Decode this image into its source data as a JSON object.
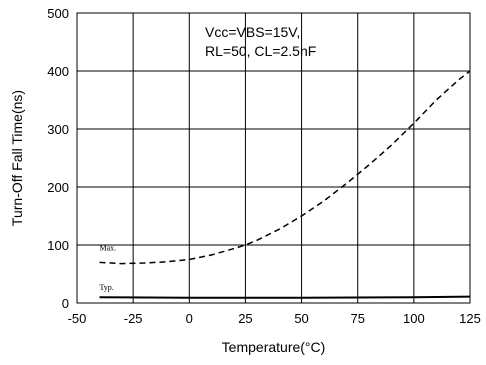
{
  "chart_data": {
    "type": "line",
    "title": "",
    "xlabel": "Temperature(°C)",
    "ylabel": "Turn-Off Fall Time(ns)",
    "xlim": [
      -50,
      125
    ],
    "ylim": [
      0,
      500
    ],
    "xticks": [
      -50,
      -25,
      0,
      25,
      50,
      75,
      100,
      125
    ],
    "yticks": [
      0,
      100,
      200,
      300,
      400,
      500
    ],
    "xtick_labels": [
      "-50",
      "-25",
      "0",
      "25",
      "50",
      "75",
      "100",
      "125"
    ],
    "ytick_labels": [
      "0",
      "100",
      "200",
      "300",
      "400",
      "500"
    ],
    "grid": true,
    "annotation": {
      "line1": "Vcc=VBS=15V,",
      "line2": "RL=50, CL=2.5nF"
    },
    "series": [
      {
        "name": "Max.",
        "style": "dashed",
        "x": [
          -40,
          -30,
          -20,
          -10,
          0,
          10,
          20,
          25,
          30,
          40,
          50,
          60,
          70,
          80,
          90,
          100,
          110,
          120,
          125
        ],
        "y": [
          70,
          68,
          69,
          71,
          75,
          83,
          94,
          100,
          108,
          127,
          150,
          176,
          206,
          238,
          272,
          310,
          350,
          385,
          400
        ]
      },
      {
        "name": "Typ.",
        "style": "solid",
        "x": [
          -40,
          0,
          50,
          100,
          125
        ],
        "y": [
          10,
          9,
          9,
          10,
          11
        ]
      }
    ]
  }
}
